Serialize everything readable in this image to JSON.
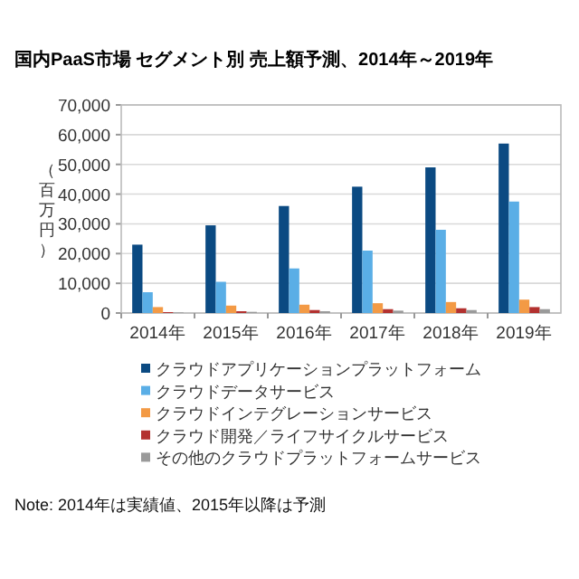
{
  "chart_data": {
    "type": "bar",
    "title": "国内PaaS市場 セグメント別 売上額予測、2014年～2019年",
    "ylabel": "（百万円）",
    "categories": [
      "2014年",
      "2015年",
      "2016年",
      "2017年",
      "2018年",
      "2019年"
    ],
    "series": [
      {
        "name": "クラウドアプリケーションプラットフォーム",
        "color": "#0b4a82",
        "values": [
          23000,
          29500,
          36000,
          42500,
          49000,
          57000
        ]
      },
      {
        "name": "クラウドデータサービス",
        "color": "#5aaee6",
        "values": [
          7000,
          10500,
          15000,
          21000,
          28000,
          37500
        ]
      },
      {
        "name": "クラウドインテグレーションサービス",
        "color": "#f39a45",
        "values": [
          2000,
          2500,
          2800,
          3300,
          3700,
          4500
        ]
      },
      {
        "name": "クラウド開発／ライフサイクルサービス",
        "color": "#b3312f",
        "values": [
          300,
          600,
          1000,
          1300,
          1600,
          2000
        ]
      },
      {
        "name": "その他のクラウドプラットフォームサービス",
        "color": "#9a9a9a",
        "values": [
          200,
          400,
          600,
          800,
          1000,
          1300
        ]
      }
    ],
    "ylim": [
      0,
      70000
    ],
    "yticks": [
      {
        "value": 0,
        "label": "0"
      },
      {
        "value": 10000,
        "label": "10,000"
      },
      {
        "value": 20000,
        "label": "20,000"
      },
      {
        "value": 30000,
        "label": "30,000"
      },
      {
        "value": 40000,
        "label": "40,000"
      },
      {
        "value": 50000,
        "label": "50,000"
      },
      {
        "value": 60000,
        "label": "60,000"
      },
      {
        "value": 70000,
        "label": "70,000"
      }
    ],
    "grid": "y",
    "legend": "bottom",
    "annotations": [
      "Note: 2014年は実績値、2015年以降は予測"
    ]
  }
}
